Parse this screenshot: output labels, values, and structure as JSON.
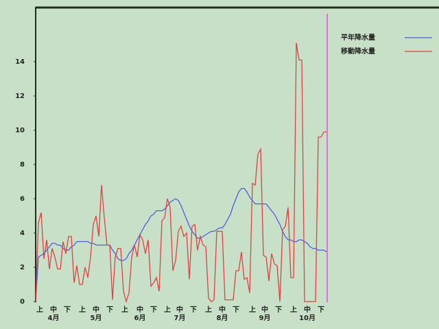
{
  "chart_data": {
    "type": "line",
    "x": [
      0,
      2,
      4,
      6,
      8,
      10,
      12,
      14,
      16,
      18,
      20,
      22,
      24,
      26,
      28,
      30,
      32,
      34,
      36,
      38,
      40,
      42,
      44,
      46,
      48,
      50,
      52,
      54,
      56,
      58,
      60,
      62,
      64,
      66,
      68,
      70,
      72,
      74,
      76,
      78,
      80,
      82,
      84,
      86,
      88,
      90,
      92,
      94,
      96,
      98,
      100,
      102,
      104,
      106,
      108,
      110,
      112,
      114,
      116,
      118,
      120,
      122,
      124,
      126,
      128,
      130,
      132,
      134,
      136,
      138,
      140,
      142,
      144,
      146,
      148,
      150,
      152,
      154,
      156,
      158,
      160,
      162,
      164,
      166,
      168,
      170,
      172,
      174,
      176,
      178,
      180,
      182,
      184,
      186,
      188,
      190,
      192,
      194,
      196,
      198,
      200,
      202,
      204,
      206,
      208,
      210,
      212
    ],
    "series": [
      {
        "name": "平年降水量",
        "color": "#4a5ce0",
        "values": [
          0,
          2.6,
          2.7,
          2.8,
          3.0,
          3.2,
          3.4,
          3.4,
          3.3,
          3.3,
          3.1,
          3.0,
          3.0,
          3.2,
          3.3,
          3.5,
          3.5,
          3.5,
          3.5,
          3.5,
          3.4,
          3.4,
          3.3,
          3.3,
          3.3,
          3.3,
          3.3,
          3.3,
          3.0,
          2.8,
          2.5,
          2.4,
          2.4,
          2.5,
          2.8,
          3.0,
          3.3,
          3.6,
          3.9,
          4.2,
          4.5,
          4.7,
          5.0,
          5.1,
          5.3,
          5.3,
          5.3,
          5.4,
          5.6,
          5.8,
          5.9,
          6.0,
          5.9,
          5.6,
          5.2,
          4.8,
          4.4,
          4.1,
          3.9,
          3.7,
          3.7,
          3.8,
          3.9,
          4.0,
          4.1,
          4.1,
          4.2,
          4.3,
          4.3,
          4.5,
          4.8,
          5.1,
          5.6,
          6.0,
          6.4,
          6.6,
          6.6,
          6.4,
          6.1,
          5.9,
          5.7,
          5.7,
          5.7,
          5.7,
          5.7,
          5.5,
          5.3,
          5.1,
          4.8,
          4.5,
          4.1,
          3.8,
          3.6,
          3.6,
          3.5,
          3.5,
          3.6,
          3.6,
          3.5,
          3.4,
          3.2,
          3.1,
          3.1,
          3.0,
          3.0,
          3.0,
          2.9
        ]
      },
      {
        "name": "移動降水量",
        "color": "#e04040",
        "values": [
          0,
          4.6,
          5.2,
          2.5,
          3.6,
          1.9,
          3.1,
          2.6,
          1.9,
          1.9,
          3.5,
          2.8,
          3.8,
          3.8,
          1.1,
          2.1,
          1.0,
          1.0,
          2.0,
          1.4,
          2.6,
          4.5,
          5.0,
          3.8,
          6.8,
          4.9,
          3.3,
          3.3,
          0.1,
          2.6,
          3.1,
          3.1,
          0.6,
          0,
          0.5,
          2.6,
          3.3,
          2.6,
          3.9,
          3.6,
          2.8,
          3.6,
          0.9,
          1.1,
          1.4,
          0.6,
          4.7,
          4.9,
          6.0,
          5.5,
          1.8,
          2.4,
          4.1,
          4.4,
          3.8,
          4.0,
          1.3,
          4.4,
          4.5,
          3.0,
          3.8,
          3.3,
          3.2,
          0.2,
          0,
          0.1,
          4.1,
          4.1,
          4.1,
          0.1,
          0.1,
          0.1,
          0.1,
          1.8,
          1.8,
          2.9,
          1.3,
          1.4,
          0.5,
          6.9,
          6.8,
          8.6,
          8.9,
          2.7,
          2.6,
          1.2,
          2.8,
          2.2,
          2.1,
          0,
          4.2,
          4.4,
          5.5,
          1.4,
          1.4,
          15.1,
          14.1,
          14.1,
          0,
          0,
          0,
          0,
          0,
          9.6,
          9.6,
          9.9,
          9.9
        ]
      }
    ],
    "xlim": [
      0,
      213
    ],
    "ylim": [
      0,
      17.2
    ],
    "yticks": [
      0,
      2,
      4,
      6,
      8,
      10,
      12,
      14
    ],
    "xticks": [
      {
        "value": 3,
        "label": "上"
      },
      {
        "value": 13,
        "label": "中"
      },
      {
        "value": 23,
        "label": "下"
      },
      {
        "value": 34,
        "label": "上"
      },
      {
        "value": 44,
        "label": "中"
      },
      {
        "value": 54,
        "label": "下"
      },
      {
        "value": 65,
        "label": "上"
      },
      {
        "value": 76,
        "label": "中"
      },
      {
        "value": 86,
        "label": "下"
      },
      {
        "value": 96,
        "label": "上"
      },
      {
        "value": 105,
        "label": "中"
      },
      {
        "value": 115,
        "label": "下"
      },
      {
        "value": 126,
        "label": "上"
      },
      {
        "value": 136,
        "label": "中"
      },
      {
        "value": 146,
        "label": "下"
      },
      {
        "value": 158,
        "label": "上"
      },
      {
        "value": 167,
        "label": "中"
      },
      {
        "value": 177,
        "label": "下"
      },
      {
        "value": 188,
        "label": "上"
      },
      {
        "value": 198,
        "label": "中"
      },
      {
        "value": 208,
        "label": "下"
      }
    ],
    "month_labels": [
      {
        "value": 13,
        "label": "4月"
      },
      {
        "value": 44,
        "label": "5月"
      },
      {
        "value": 76,
        "label": "6月"
      },
      {
        "value": 105,
        "label": "7月"
      },
      {
        "value": 136,
        "label": "8月"
      },
      {
        "value": 167,
        "label": "9月"
      },
      {
        "value": 198,
        "label": "10月"
      }
    ],
    "grid": false
  }
}
